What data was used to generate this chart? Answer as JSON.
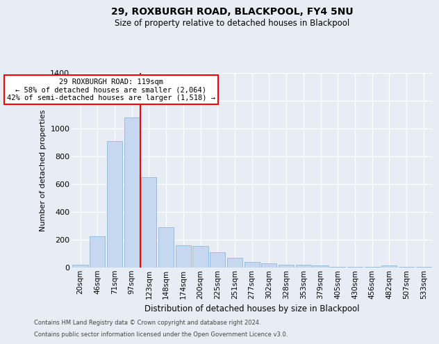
{
  "title1": "29, ROXBURGH ROAD, BLACKPOOL, FY4 5NU",
  "title2": "Size of property relative to detached houses in Blackpool",
  "xlabel": "Distribution of detached houses by size in Blackpool",
  "ylabel": "Number of detached properties",
  "categories": [
    "20sqm",
    "46sqm",
    "71sqm",
    "97sqm",
    "123sqm",
    "148sqm",
    "174sqm",
    "200sqm",
    "225sqm",
    "251sqm",
    "277sqm",
    "302sqm",
    "328sqm",
    "353sqm",
    "379sqm",
    "405sqm",
    "430sqm",
    "456sqm",
    "482sqm",
    "507sqm",
    "533sqm"
  ],
  "values": [
    18,
    225,
    910,
    1080,
    650,
    290,
    160,
    155,
    108,
    70,
    40,
    28,
    18,
    18,
    12,
    4,
    3,
    2,
    12,
    2,
    2
  ],
  "bar_color": "#c5d8f0",
  "bar_edge_color": "#7ab0d8",
  "bg_color": "#e8edf5",
  "vline_color": "red",
  "vline_position": 3.5,
  "annotation_text": "29 ROXBURGH ROAD: 119sqm\n← 58% of detached houses are smaller (2,064)\n42% of semi-detached houses are larger (1,518) →",
  "annotation_box_color": "white",
  "annotation_box_edge": "red",
  "ylim_max": 1400,
  "yticks": [
    0,
    200,
    400,
    600,
    800,
    1000,
    1200,
    1400
  ],
  "grid_color": "#d0d8e8",
  "footer1": "Contains HM Land Registry data © Crown copyright and database right 2024.",
  "footer2": "Contains public sector information licensed under the Open Government Licence v3.0.",
  "title_fontsize": 10,
  "subtitle_fontsize": 8.5,
  "axis_label_fontsize": 8,
  "tick_fontsize": 7.5,
  "footer_fontsize": 6.0
}
